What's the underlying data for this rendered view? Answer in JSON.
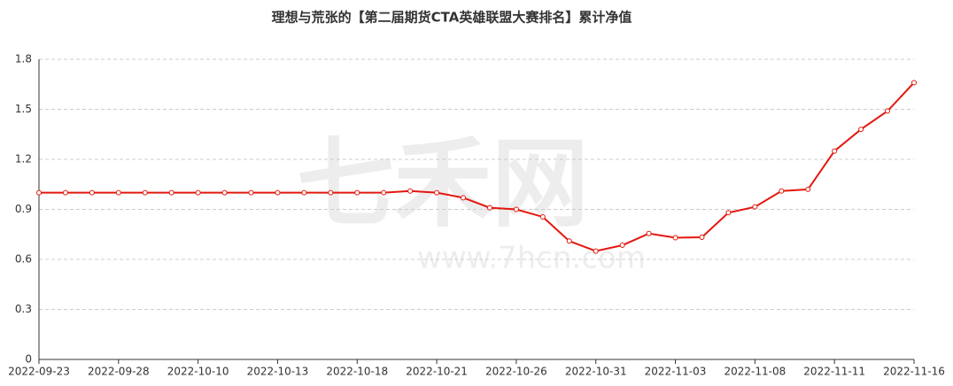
{
  "chart_data": {
    "type": "line",
    "title": "理想与荒张的【第二届期货CTA英雄联盟大赛排名】累计净值",
    "watermark": {
      "logo": "七禾网",
      "url": "www.7hcn.com"
    },
    "categories": [
      "2022-09-23",
      null,
      null,
      "2022-09-28",
      null,
      null,
      "2022-10-10",
      null,
      null,
      "2022-10-13",
      null,
      null,
      "2022-10-18",
      null,
      null,
      "2022-10-21",
      null,
      null,
      "2022-10-26",
      null,
      null,
      "2022-10-31",
      null,
      null,
      "2022-11-03",
      null,
      null,
      "2022-11-08",
      null,
      null,
      "2022-11-11",
      null,
      null,
      "2022-11-16"
    ],
    "values": [
      1.0,
      1.0,
      1.0,
      1.0,
      1.0,
      1.0,
      1.0,
      1.0,
      1.0,
      1.0,
      1.0,
      1.0,
      1.0,
      1.0,
      1.01,
      1.0,
      0.97,
      0.91,
      0.9,
      0.855,
      0.71,
      0.65,
      0.685,
      0.755,
      0.73,
      0.733,
      0.88,
      0.915,
      1.01,
      1.02,
      1.25,
      1.38,
      1.49,
      1.66
    ],
    "color": "#e3170d",
    "ylim": [
      0,
      1.8
    ],
    "yticks": [
      0,
      0.3,
      0.6,
      0.9,
      1.2,
      1.5,
      1.8
    ],
    "grid": true
  }
}
